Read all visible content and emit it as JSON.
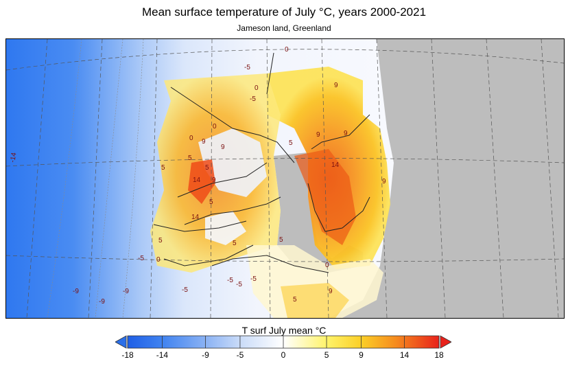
{
  "title": "Mean surface temperature of July °C, years 2000-2021",
  "subtitle": "Jameson land, Greenland",
  "colorbar": {
    "title": "T surf July mean °C",
    "ticks": [
      "-18",
      "-14",
      "-9",
      "-5",
      "0",
      "5",
      "9",
      "14",
      "18"
    ],
    "range": [
      -18,
      18
    ],
    "extend": "both",
    "arrow_low_color": "#2b6fe8",
    "arrow_high_color": "#e8221b"
  },
  "map": {
    "no_data_color": "#bdbdbd",
    "contour_labels": [
      "-14",
      "0",
      "-5",
      "0",
      "9",
      "9",
      "5",
      "9",
      "0",
      "5",
      "14",
      "9",
      "5",
      "5",
      "14",
      "9",
      "9",
      "5",
      "14",
      "5",
      "-5",
      "0",
      "0",
      "-5",
      "-5",
      "-5",
      "-9",
      "-9",
      "-9",
      "-5",
      "0",
      "5",
      "5",
      "9",
      "9",
      "5",
      "-5"
    ]
  }
}
